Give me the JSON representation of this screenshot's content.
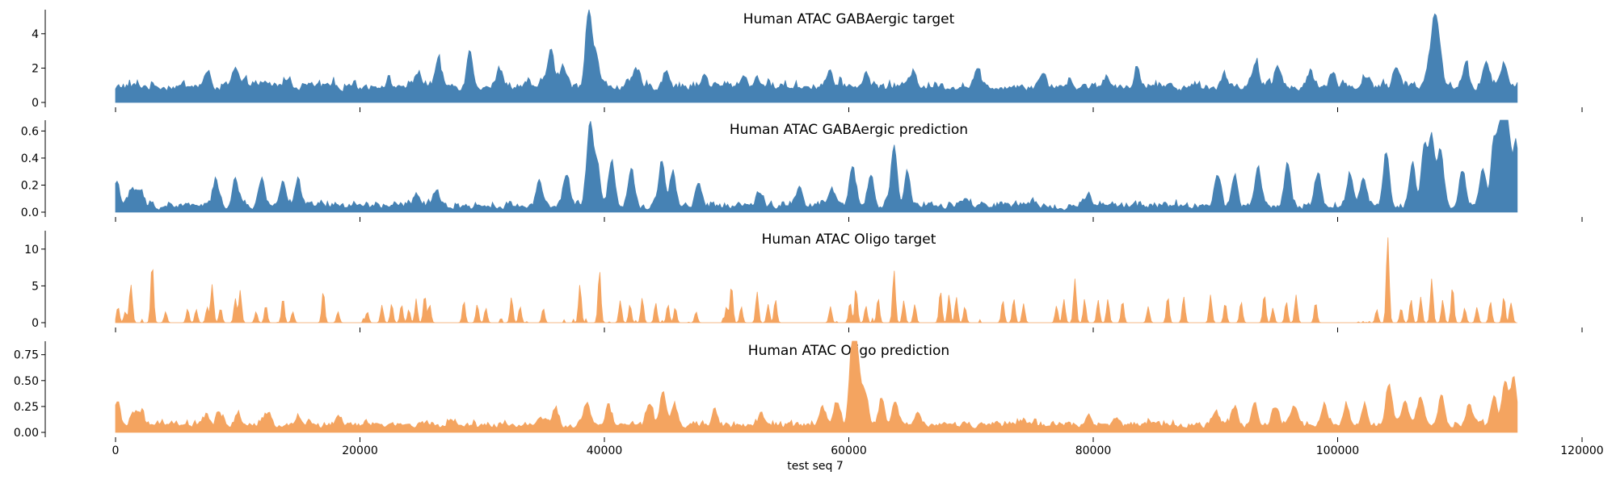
{
  "chart_data": [
    {
      "type": "area",
      "title": "Human ATAC GABAergic target",
      "color": "#4682b4",
      "yticks": [
        0,
        2,
        4
      ],
      "ylim": [
        0,
        5.4
      ],
      "xlim": [
        0,
        120000
      ],
      "x_start": 0,
      "x_end": 114700,
      "baseline": 0.7,
      "noise": 0.55,
      "peaks": [
        [
          7500,
          1.4
        ],
        [
          9800,
          1.6
        ],
        [
          11200,
          1.0
        ],
        [
          14000,
          1.2
        ],
        [
          19300,
          0.9
        ],
        [
          22200,
          1.0
        ],
        [
          24800,
          1.6
        ],
        [
          26400,
          2.2
        ],
        [
          29000,
          2.8
        ],
        [
          31500,
          1.7
        ],
        [
          35600,
          3.0
        ],
        [
          36600,
          1.9
        ],
        [
          38700,
          5.2
        ],
        [
          39300,
          2.6
        ],
        [
          42600,
          1.6
        ],
        [
          45100,
          1.7
        ],
        [
          48200,
          1.3
        ],
        [
          51400,
          1.4
        ],
        [
          52600,
          1.2
        ],
        [
          58400,
          1.6
        ],
        [
          61400,
          1.4
        ],
        [
          65300,
          1.7
        ],
        [
          70500,
          1.6
        ],
        [
          75800,
          1.5
        ],
        [
          78200,
          1.0
        ],
        [
          81000,
          1.3
        ],
        [
          83600,
          1.7
        ],
        [
          90800,
          1.3
        ],
        [
          93300,
          2.0
        ],
        [
          95100,
          2.0
        ],
        [
          97800,
          1.5
        ],
        [
          99600,
          1.5
        ],
        [
          102400,
          1.4
        ],
        [
          104800,
          1.7
        ],
        [
          107400,
          1.8
        ],
        [
          107900,
          4.2
        ],
        [
          108300,
          3.0
        ],
        [
          110500,
          1.9
        ],
        [
          112200,
          2.3
        ],
        [
          113600,
          2.0
        ]
      ]
    },
    {
      "type": "area",
      "title": "Human ATAC GABAergic prediction",
      "color": "#4682b4",
      "yticks": [
        0.0,
        0.2,
        0.4,
        0.6
      ],
      "ylim": [
        0,
        0.68
      ],
      "xlim": [
        0,
        120000
      ],
      "x_start": 0,
      "x_end": 114700,
      "baseline": 0.02,
      "noise": 0.06,
      "peaks": [
        [
          100,
          0.22
        ],
        [
          1400,
          0.14
        ],
        [
          2000,
          0.13
        ],
        [
          8200,
          0.2
        ],
        [
          9800,
          0.22
        ],
        [
          12000,
          0.21
        ],
        [
          13700,
          0.21
        ],
        [
          14900,
          0.2
        ],
        [
          24600,
          0.12
        ],
        [
          26300,
          0.12
        ],
        [
          34700,
          0.22
        ],
        [
          36900,
          0.27
        ],
        [
          38800,
          0.61
        ],
        [
          39400,
          0.34
        ],
        [
          40600,
          0.38
        ],
        [
          42200,
          0.31
        ],
        [
          44700,
          0.37
        ],
        [
          45600,
          0.27
        ],
        [
          47700,
          0.19
        ],
        [
          52600,
          0.12
        ],
        [
          56000,
          0.18
        ],
        [
          58600,
          0.15
        ],
        [
          60300,
          0.3
        ],
        [
          61800,
          0.25
        ],
        [
          63700,
          0.48
        ],
        [
          64800,
          0.26
        ],
        [
          69500,
          0.06
        ],
        [
          79600,
          0.1
        ],
        [
          90200,
          0.24
        ],
        [
          91600,
          0.23
        ],
        [
          93500,
          0.3
        ],
        [
          95900,
          0.33
        ],
        [
          98400,
          0.28
        ],
        [
          101000,
          0.25
        ],
        [
          102100,
          0.25
        ],
        [
          104000,
          0.42
        ],
        [
          106100,
          0.33
        ],
        [
          107100,
          0.46
        ],
        [
          107700,
          0.52
        ],
        [
          108400,
          0.44
        ],
        [
          110200,
          0.3
        ],
        [
          111900,
          0.31
        ],
        [
          112800,
          0.48
        ],
        [
          113400,
          0.63
        ],
        [
          113900,
          0.6
        ],
        [
          114600,
          0.47
        ]
      ]
    },
    {
      "type": "area",
      "title": "Human ATAC Oligo target",
      "color": "#f4a460",
      "yticks": [
        0,
        5,
        10
      ],
      "ylim": [
        0,
        12.5
      ],
      "xlim": [
        0,
        120000
      ],
      "x_start": 0,
      "x_end": 114700,
      "baseline": 0,
      "noise": 0,
      "spikes": [
        [
          200,
          2.2
        ],
        [
          800,
          1.5
        ],
        [
          1200,
          2.5
        ],
        [
          1300,
          3.2
        ],
        [
          3000,
          8.2
        ],
        [
          4100,
          1.5
        ],
        [
          5900,
          1.9
        ],
        [
          6600,
          1.8
        ],
        [
          7500,
          2.1
        ],
        [
          7900,
          5.2
        ],
        [
          8600,
          2.0
        ],
        [
          9800,
          3.3
        ],
        [
          10200,
          4.4
        ],
        [
          11500,
          1.5
        ],
        [
          12300,
          2.4
        ],
        [
          13700,
          3.4
        ],
        [
          14500,
          1.5
        ],
        [
          17000,
          4.4
        ],
        [
          18200,
          1.5
        ],
        [
          20600,
          1.5
        ],
        [
          21800,
          2.4
        ],
        [
          22600,
          2.6
        ],
        [
          23400,
          2.5
        ],
        [
          24000,
          1.8
        ],
        [
          24600,
          2.7
        ],
        [
          25300,
          3.8
        ],
        [
          25700,
          2.5
        ],
        [
          28500,
          3.0
        ],
        [
          29600,
          2.5
        ],
        [
          30300,
          2.0
        ],
        [
          32400,
          3.5
        ],
        [
          33100,
          2.2
        ],
        [
          35000,
          2.0
        ],
        [
          38000,
          5.2
        ],
        [
          39600,
          7.2
        ],
        [
          41300,
          3.0
        ],
        [
          42100,
          2.5
        ],
        [
          43100,
          3.4
        ],
        [
          44200,
          2.7
        ],
        [
          45200,
          2.5
        ],
        [
          45800,
          2.1
        ],
        [
          47500,
          1.5
        ],
        [
          50000,
          2.2
        ],
        [
          50400,
          5.2
        ],
        [
          51200,
          2.2
        ],
        [
          52500,
          4.2
        ],
        [
          53400,
          2.5
        ],
        [
          54000,
          3.2
        ],
        [
          58500,
          2.2
        ],
        [
          60100,
          2.8
        ],
        [
          60600,
          4.5
        ],
        [
          61400,
          2.3
        ],
        [
          62400,
          3.4
        ],
        [
          63700,
          7.2
        ],
        [
          64500,
          3.0
        ],
        [
          65400,
          2.5
        ],
        [
          67500,
          4.4
        ],
        [
          68200,
          3.8
        ],
        [
          68800,
          3.5
        ],
        [
          69500,
          2.2
        ],
        [
          72600,
          3.1
        ],
        [
          73500,
          3.3
        ],
        [
          74300,
          2.6
        ],
        [
          77000,
          2.3
        ],
        [
          77600,
          3.2
        ],
        [
          78500,
          6.0
        ],
        [
          79300,
          3.0
        ],
        [
          80400,
          3.1
        ],
        [
          81200,
          3.2
        ],
        [
          82400,
          3.0
        ],
        [
          84500,
          2.2
        ],
        [
          86100,
          3.6
        ],
        [
          87400,
          3.6
        ],
        [
          89600,
          3.8
        ],
        [
          90800,
          2.7
        ],
        [
          92100,
          2.9
        ],
        [
          94000,
          3.9
        ],
        [
          94700,
          2.0
        ],
        [
          95800,
          2.9
        ],
        [
          96600,
          3.8
        ],
        [
          98200,
          2.8
        ],
        [
          103200,
          1.8
        ],
        [
          104100,
          11.8
        ],
        [
          105200,
          2.0
        ],
        [
          106000,
          3.2
        ],
        [
          106800,
          3.5
        ],
        [
          107700,
          6.0
        ],
        [
          108600,
          3.1
        ],
        [
          109400,
          5.0
        ],
        [
          110400,
          2.0
        ],
        [
          111400,
          2.1
        ],
        [
          112500,
          2.9
        ],
        [
          113600,
          3.6
        ],
        [
          114200,
          2.7
        ]
      ]
    },
    {
      "type": "area",
      "title": "Human ATAC Oligo prediction",
      "color": "#f4a460",
      "yticks": [
        0.0,
        0.25,
        0.5,
        0.75
      ],
      "ylim": [
        0,
        0.88
      ],
      "xlim": [
        0,
        120000
      ],
      "x_start": 0,
      "x_end": 114700,
      "baseline": 0.04,
      "noise": 0.07,
      "peaks": [
        [
          100,
          0.26
        ],
        [
          1500,
          0.17
        ],
        [
          2100,
          0.16
        ],
        [
          7400,
          0.12
        ],
        [
          8500,
          0.14
        ],
        [
          10000,
          0.15
        ],
        [
          12500,
          0.14
        ],
        [
          15000,
          0.13
        ],
        [
          18200,
          0.11
        ],
        [
          27400,
          0.1
        ],
        [
          34800,
          0.12
        ],
        [
          36000,
          0.16
        ],
        [
          38600,
          0.26
        ],
        [
          40300,
          0.22
        ],
        [
          43700,
          0.24
        ],
        [
          44800,
          0.36
        ],
        [
          45700,
          0.22
        ],
        [
          49000,
          0.16
        ],
        [
          52900,
          0.12
        ],
        [
          57800,
          0.18
        ],
        [
          59000,
          0.26
        ],
        [
          60300,
          0.85
        ],
        [
          60700,
          0.6
        ],
        [
          61300,
          0.35
        ],
        [
          62700,
          0.29
        ],
        [
          63800,
          0.27
        ],
        [
          65700,
          0.18
        ],
        [
          74300,
          0.1
        ],
        [
          79600,
          0.15
        ],
        [
          81800,
          0.13
        ],
        [
          90000,
          0.18
        ],
        [
          91600,
          0.21
        ],
        [
          93200,
          0.24
        ],
        [
          94900,
          0.23
        ],
        [
          96500,
          0.22
        ],
        [
          98900,
          0.26
        ],
        [
          100700,
          0.25
        ],
        [
          102200,
          0.23
        ],
        [
          104200,
          0.41
        ],
        [
          105500,
          0.27
        ],
        [
          106800,
          0.3
        ],
        [
          108500,
          0.3
        ],
        [
          110800,
          0.26
        ],
        [
          112800,
          0.34
        ],
        [
          113700,
          0.46
        ],
        [
          114400,
          0.5
        ]
      ]
    }
  ],
  "x_axis": {
    "ticks": [
      0,
      20000,
      40000,
      60000,
      80000,
      100000,
      120000
    ],
    "label": "test seq 7"
  }
}
